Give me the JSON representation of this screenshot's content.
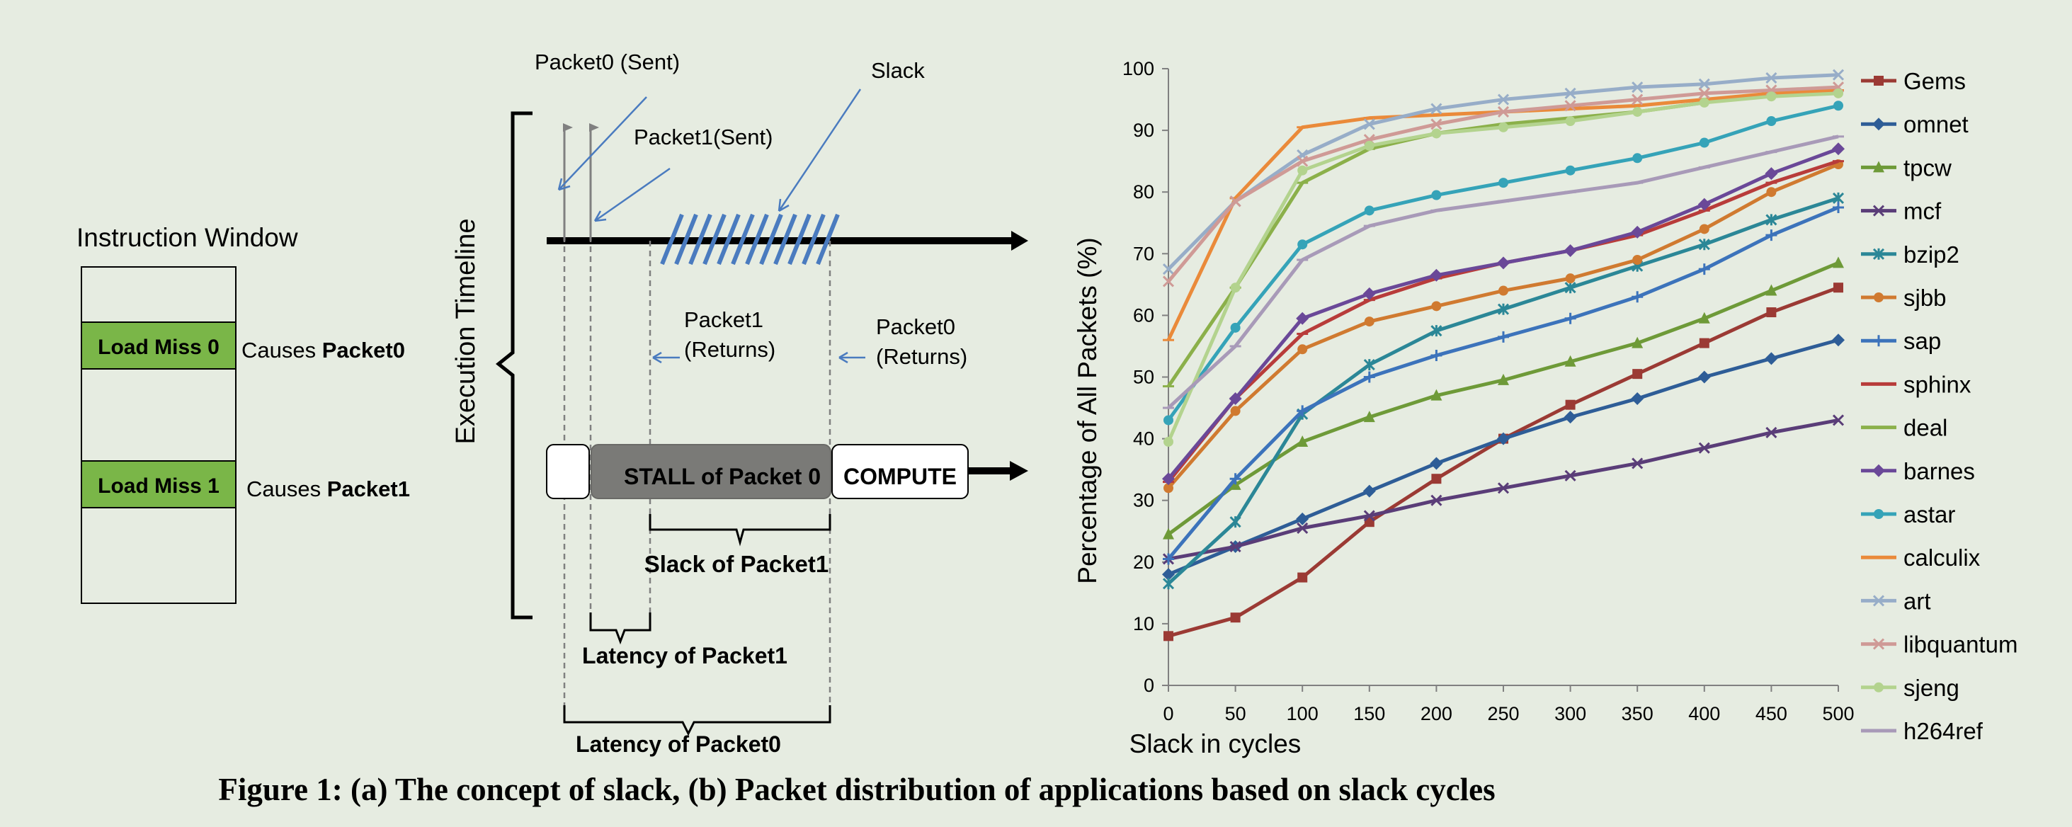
{
  "panel_a": {
    "instruction_window_title": "Instruction Window",
    "load_miss_0": "Load Miss 0",
    "load_miss_1": "Load Miss 1",
    "causes_0_prefix": "Causes ",
    "causes_0_bold": "Packet0",
    "causes_1_prefix": "Causes ",
    "causes_1_bold": "Packet1",
    "execution_timeline": "Execution Timeline",
    "packet0_sent": "Packet0 (Sent)",
    "packet1_sent": "Packet1(Sent)",
    "slack": "Slack",
    "packet1_returns_1": "Packet1",
    "packet1_returns_2": "(Returns)",
    "packet0_returns_1": "Packet0",
    "packet0_returns_2": "(Returns)",
    "stall": "STALL of Packet 0",
    "compute": "COMPUTE",
    "slack_of_packet1": "Slack of Packet1",
    "latency_of_packet1": "Latency of Packet1",
    "latency_of_packet0": "Latency of Packet0",
    "colors": {
      "green": "#7ab648",
      "stall": "#7a7a77",
      "arrow": "#4a7bbf",
      "hatch": "#4a7bbf"
    }
  },
  "caption": "Figure 1: (a) The concept of slack, (b) Packet distribution of applications based on slack cycles",
  "chart_data": {
    "type": "line",
    "xlabel": "Slack in cycles",
    "ylabel": "Percentage of All Packets (%)",
    "x": [
      0,
      50,
      100,
      150,
      200,
      250,
      300,
      350,
      400,
      450,
      500
    ],
    "xlim": [
      0,
      500
    ],
    "ylim": [
      0,
      100
    ],
    "yticks": [
      0,
      10,
      20,
      30,
      40,
      50,
      60,
      70,
      80,
      90,
      100
    ],
    "grid": false,
    "legend_position": "right",
    "series": [
      {
        "name": "Gems",
        "color": "#9b3a34",
        "marker": "square",
        "values": [
          8,
          11,
          17.5,
          26.5,
          33.5,
          40,
          45.5,
          50.5,
          55.5,
          60.5,
          64.5
        ]
      },
      {
        "name": "omnet",
        "color": "#2e5d97",
        "marker": "diamond",
        "values": [
          18,
          22.5,
          27,
          31.5,
          36,
          40,
          43.5,
          46.5,
          50,
          53,
          56
        ]
      },
      {
        "name": "tpcw",
        "color": "#6e9a38",
        "marker": "triangle",
        "values": [
          24.5,
          32.5,
          39.5,
          43.5,
          47,
          49.5,
          52.5,
          55.5,
          59.5,
          64,
          68.5
        ]
      },
      {
        "name": "mcf",
        "color": "#5a3d78",
        "marker": "x",
        "values": [
          20.5,
          22.5,
          25.5,
          27.5,
          30,
          32,
          34,
          36,
          38.5,
          41,
          43
        ]
      },
      {
        "name": "bzip2",
        "color": "#2b8797",
        "marker": "star",
        "values": [
          16.5,
          26.5,
          44,
          52,
          57.5,
          61,
          64.5,
          68,
          71.5,
          75.5,
          79
        ]
      },
      {
        "name": "sjbb",
        "color": "#d07a30",
        "marker": "circle",
        "values": [
          32,
          44.5,
          54.5,
          59,
          61.5,
          64,
          66,
          69,
          74,
          80,
          84.5
        ]
      },
      {
        "name": "sap",
        "color": "#3c73bb",
        "marker": "plus",
        "values": [
          20.5,
          33.5,
          44.5,
          50,
          53.5,
          56.5,
          59.5,
          63,
          67.5,
          73,
          77.5
        ]
      },
      {
        "name": "sphinx",
        "color": "#b83c3a",
        "marker": "dash",
        "values": [
          33,
          46.5,
          57,
          62.5,
          66,
          68.5,
          70.5,
          73,
          77,
          81.5,
          85
        ]
      },
      {
        "name": "deal",
        "color": "#8bb04a",
        "marker": "dash",
        "values": [
          48.5,
          64.5,
          81.5,
          87,
          89.5,
          91,
          92,
          93,
          94.5,
          96,
          96.5
        ]
      },
      {
        "name": "barnes",
        "color": "#6a4898",
        "marker": "diamond",
        "values": [
          33.5,
          46.5,
          59.5,
          63.5,
          66.5,
          68.5,
          70.5,
          73.5,
          78,
          83,
          87
        ]
      },
      {
        "name": "astar",
        "color": "#35a3b8",
        "marker": "circle",
        "values": [
          43,
          58,
          71.5,
          77,
          79.5,
          81.5,
          83.5,
          85.5,
          88,
          91.5,
          94
        ]
      },
      {
        "name": "calculix",
        "color": "#ea8a3a",
        "marker": "dash",
        "values": [
          56,
          79,
          90.5,
          92,
          92.5,
          93,
          93.5,
          94,
          95,
          96,
          96.5
        ]
      },
      {
        "name": "art",
        "color": "#97adc8",
        "marker": "x",
        "values": [
          67.5,
          78.5,
          86,
          91,
          93.5,
          95,
          96,
          97,
          97.5,
          98.5,
          99
        ]
      },
      {
        "name": "libquantum",
        "color": "#cf9a96",
        "marker": "x",
        "values": [
          65.5,
          78.5,
          85,
          88.5,
          91,
          93,
          94,
          95,
          96,
          96.5,
          97
        ]
      },
      {
        "name": "sjeng",
        "color": "#b3d38e",
        "marker": "circle",
        "values": [
          39.5,
          64.5,
          83.5,
          87.5,
          89.5,
          90.5,
          91.5,
          93,
          94.5,
          95.5,
          96
        ]
      },
      {
        "name": "h264ref",
        "color": "#a89ab8",
        "marker": "dash",
        "values": [
          45,
          55,
          69,
          74.5,
          77,
          78.5,
          80,
          81.5,
          84,
          86.5,
          89
        ]
      }
    ]
  }
}
